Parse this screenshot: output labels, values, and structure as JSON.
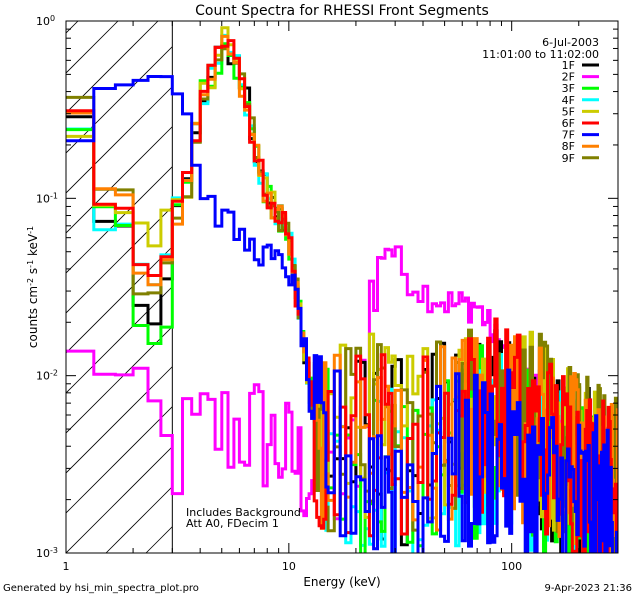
{
  "chart_data": {
    "type": "line",
    "title": "Count Spectra for RHESSI Front Segments",
    "xlabel": "Energy (keV)",
    "ylabel_parts": [
      "counts cm",
      "-2",
      " s",
      "-1",
      " keV",
      "-1"
    ],
    "xscale": "log",
    "yscale": "log",
    "xlim": [
      1,
      300
    ],
    "ylim": [
      0.001,
      1
    ],
    "x_ticks": [
      {
        "value": 1,
        "label": "1"
      },
      {
        "value": 10,
        "label": "10"
      },
      {
        "value": 100,
        "label": "100"
      }
    ],
    "y_ticks": [
      {
        "value": 1,
        "base": "10",
        "exp": "0"
      },
      {
        "value": 0.1,
        "base": "10",
        "exp": "-1"
      },
      {
        "value": 0.01,
        "base": "10",
        "exp": "-2"
      },
      {
        "value": 0.001,
        "base": "10",
        "exp": "-3"
      }
    ],
    "hatched_region_keV": [
      1,
      3
    ],
    "date": "6-Jul-2003",
    "time_range": "11:01:00 to 11:02:00",
    "notes": [
      "Includes Background",
      "Att A0, FDecim 1"
    ],
    "series": [
      {
        "name": "1F",
        "color": "#000000",
        "thermal": [
          0.3,
          0.08,
          0.03
        ],
        "lowE": 0.0045
      },
      {
        "name": "2F",
        "color": "#ff00ff",
        "type": "magenta"
      },
      {
        "name": "3F",
        "color": "#00ff00",
        "thermal": [
          0.29,
          0.07,
          0.018
        ],
        "lowE": 0.0035
      },
      {
        "name": "4F",
        "color": "#00ffff",
        "thermal": [
          0.22,
          0.06,
          0.04
        ],
        "lowE": 0.0035
      },
      {
        "name": "5F",
        "color": "#cccc00",
        "thermal": [
          0.26,
          0.085,
          0.08
        ],
        "lowE": 0.006
      },
      {
        "name": "6F",
        "color": "#ff0000",
        "thermal": [
          0.28,
          0.09,
          0.05
        ],
        "lowE": 0.005
      },
      {
        "name": "7F",
        "color": "#0000ff",
        "type": "blue"
      },
      {
        "name": "8F",
        "color": "#ff8000",
        "thermal": [
          0.3,
          0.1,
          0.04
        ],
        "lowE": 0.005
      },
      {
        "name": "9F",
        "color": "#808000",
        "thermal": [
          0.34,
          0.12,
          0.035
        ],
        "lowE": 0.0055
      }
    ]
  },
  "footer": {
    "generated": "Generated by hsi_min_spectra_plot.pro",
    "timestamp": "9-Apr-2023 21:36"
  }
}
